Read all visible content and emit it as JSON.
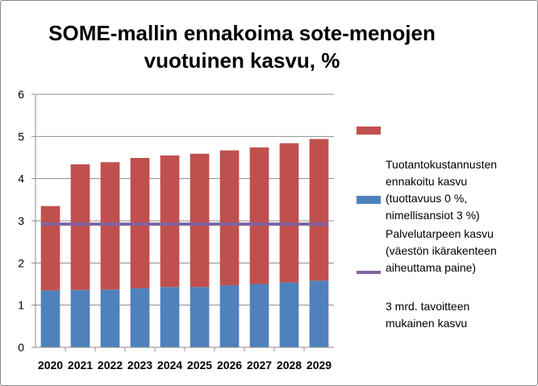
{
  "chart_data": {
    "type": "bar",
    "stacked": true,
    "title": "SOME-mallin ennakoima sote-menojen\nvuotuinen kasvu, %",
    "categories": [
      "2020",
      "2021",
      "2022",
      "2023",
      "2024",
      "2025",
      "2026",
      "2027",
      "2028",
      "2029"
    ],
    "series": [
      {
        "name": "Palvelutarpeen kasvu\n(väestön ikärakenteen\naiheuttama paine)",
        "color": "#4f81bd",
        "values": [
          1.35,
          1.36,
          1.37,
          1.4,
          1.43,
          1.43,
          1.47,
          1.5,
          1.54,
          1.58
        ]
      },
      {
        "name": "Tuotantokustannusten\nennakoitu kasvu\n(tuottavuus 0 %,\nnimellisansiot 3 %)",
        "color": "#c0504d",
        "values": [
          2.0,
          2.98,
          3.02,
          3.09,
          3.12,
          3.16,
          3.2,
          3.24,
          3.3,
          3.36
        ]
      }
    ],
    "reference_line": {
      "name": "3 mrd. tavoitteen\nmukainen kasvu",
      "color": "#8064a2",
      "value": 2.92
    },
    "ylim": [
      0,
      6
    ],
    "yticks": [
      "0",
      "1",
      "2",
      "3",
      "4",
      "5",
      "6"
    ],
    "grid": "horizontal",
    "legend_position": "right",
    "xlabel": "",
    "ylabel": ""
  }
}
